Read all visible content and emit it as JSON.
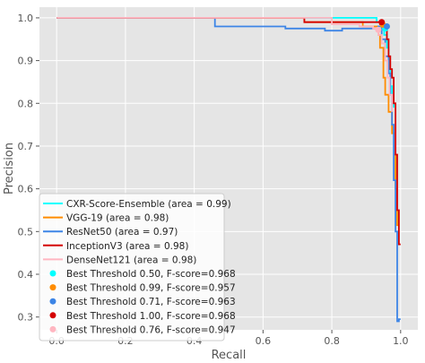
{
  "chart_data": {
    "type": "line",
    "title": "",
    "xlabel": "Recall",
    "ylabel": "Precision",
    "xlim": [
      -0.05,
      1.05
    ],
    "ylim": [
      0.27,
      1.025
    ],
    "xticks": [
      "0.0",
      "0.2",
      "0.4",
      "0.6",
      "0.8",
      "1.0"
    ],
    "xtick_values": [
      0.0,
      0.2,
      0.4,
      0.6,
      0.8,
      1.0
    ],
    "yticks": [
      "0.3",
      "0.4",
      "0.5",
      "0.6",
      "0.7",
      "0.8",
      "0.9",
      "1.0"
    ],
    "ytick_values": [
      0.3,
      0.4,
      0.5,
      0.6,
      0.7,
      0.8,
      0.9,
      1.0
    ],
    "grid": true,
    "legend_position": "lower-left",
    "series": [
      {
        "name": "CXR-Score-Ensemble (area = 0.99)",
        "color": "#00ffff",
        "x": [
          0.0,
          0.93,
          0.93,
          0.945,
          0.945,
          0.952,
          0.952,
          0.96,
          0.96,
          0.965,
          0.965,
          0.97,
          0.97,
          0.975,
          0.975,
          0.98,
          0.98
        ],
        "y": [
          1.0,
          1.0,
          0.99,
          0.99,
          0.98,
          0.98,
          0.96,
          0.96,
          0.93,
          0.93,
          0.88,
          0.88,
          0.84,
          0.84,
          0.8,
          0.8,
          0.79
        ]
      },
      {
        "name": "VGG-19 (area = 0.98)",
        "color": "#ff8c00",
        "x": [
          0.0,
          0.72,
          0.72,
          0.89,
          0.89,
          0.935,
          0.935,
          0.94,
          0.94,
          0.95,
          0.95,
          0.955,
          0.955,
          0.965,
          0.965,
          0.975,
          0.975,
          0.985,
          0.985,
          0.99,
          0.99,
          0.995
        ],
        "y": [
          1.0,
          1.0,
          0.99,
          0.99,
          0.98,
          0.98,
          0.96,
          0.96,
          0.93,
          0.93,
          0.86,
          0.86,
          0.82,
          0.82,
          0.78,
          0.78,
          0.73,
          0.73,
          0.6,
          0.6,
          0.515,
          0.515
        ]
      },
      {
        "name": "ResNet50 (area = 0.97)",
        "color": "#3d85e6",
        "x": [
          0.0,
          0.46,
          0.46,
          0.665,
          0.665,
          0.78,
          0.78,
          0.83,
          0.83,
          0.935,
          0.935,
          0.945,
          0.945,
          0.955,
          0.955,
          0.965,
          0.965,
          0.97,
          0.97,
          0.975,
          0.975,
          0.98,
          0.98,
          0.985,
          0.985,
          0.99,
          0.99,
          0.995,
          0.995,
          1.0
        ],
        "y": [
          1.0,
          1.0,
          0.98,
          0.98,
          0.975,
          0.975,
          0.97,
          0.97,
          0.975,
          0.975,
          0.98,
          0.98,
          0.95,
          0.95,
          0.91,
          0.91,
          0.87,
          0.87,
          0.82,
          0.82,
          0.75,
          0.75,
          0.62,
          0.62,
          0.5,
          0.5,
          0.29,
          0.29,
          0.295,
          0.295
        ]
      },
      {
        "name": "InceptionV3 (area = 0.98)",
        "color": "#d40000",
        "x": [
          0.0,
          0.72,
          0.72,
          0.94,
          0.94,
          0.955,
          0.955,
          0.96,
          0.96,
          0.965,
          0.965,
          0.97,
          0.97,
          0.975,
          0.975,
          0.98,
          0.98,
          0.985,
          0.985,
          0.99,
          0.99,
          0.995,
          0.995,
          1.0
        ],
        "y": [
          1.0,
          1.0,
          0.99,
          0.99,
          0.985,
          0.985,
          0.98,
          0.98,
          0.95,
          0.95,
          0.91,
          0.91,
          0.88,
          0.88,
          0.86,
          0.86,
          0.8,
          0.8,
          0.68,
          0.68,
          0.55,
          0.55,
          0.47,
          0.47
        ]
      },
      {
        "name": "DenseNet121 (area = 0.98)",
        "color": "#ffb6c1",
        "x": [
          0.0,
          0.8,
          0.8,
          0.88,
          0.88,
          0.92,
          0.92,
          0.935,
          0.935,
          0.945,
          0.945,
          0.955,
          0.955,
          0.962,
          0.962,
          0.968,
          0.968,
          0.975,
          0.975
        ],
        "y": [
          1.0,
          1.0,
          0.985,
          0.985,
          0.98,
          0.98,
          0.975,
          0.975,
          0.96,
          0.96,
          0.94,
          0.94,
          0.9,
          0.9,
          0.86,
          0.86,
          0.82,
          0.82,
          0.78
        ]
      }
    ],
    "points": [
      {
        "name": "Best Threshold 0.50, F-score=0.968",
        "color": "#00ffff",
        "x": 0.955,
        "y": 0.975
      },
      {
        "name": "Best Threshold 0.99, F-score=0.957",
        "color": "#ff8c00",
        "x": 0.948,
        "y": 0.984
      },
      {
        "name": "Best Threshold 0.71, F-score=0.963",
        "color": "#3d85e6",
        "x": 0.96,
        "y": 0.98
      },
      {
        "name": "Best Threshold 1.00, F-score=0.968",
        "color": "#d40000",
        "x": 0.945,
        "y": 0.99
      },
      {
        "name": "Best Threshold 0.76, F-score=0.947",
        "color": "#ffb6c1",
        "x": 0.935,
        "y": 0.972
      }
    ]
  }
}
